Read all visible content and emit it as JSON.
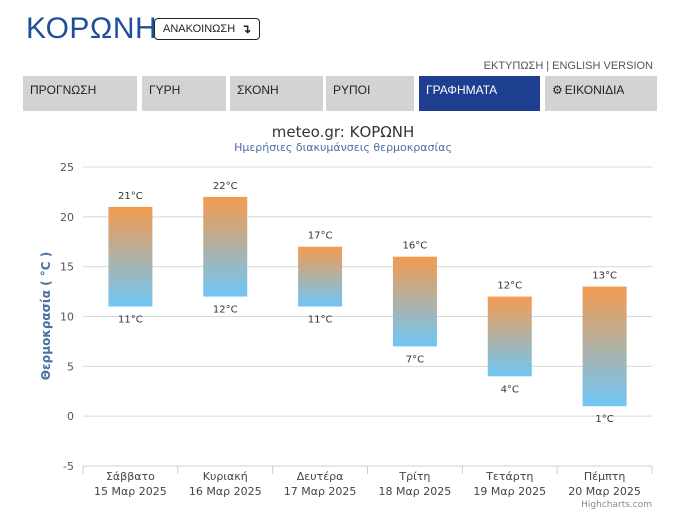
{
  "header": {
    "title": "ΚΟΡΩΝΗ",
    "announce_label": "ΑΝΑΚΟΙΝΩΣΗ",
    "announce_icon": "arrow-turn-down-icon",
    "print_link": "ΕΚΤΥΠΩΣΗ",
    "link_separator": "|",
    "english_link": "ENGLISH VERSION"
  },
  "tabs": [
    {
      "label": "ΠΡΟΓΝΩΣΗ",
      "active": false
    },
    {
      "label": "ΓΥΡΗ",
      "active": false
    },
    {
      "label": "ΣΚΟΝΗ",
      "active": false
    },
    {
      "label": "ΡΥΠΟΙ",
      "active": false
    },
    {
      "label": "ΓΡΑΦΗΜΑΤΑ",
      "active": true
    },
    {
      "label": "ΕΙΚΟΝΙΔΙΑ",
      "active": false,
      "icon": "gear-icon"
    }
  ],
  "colors": {
    "accent": "#1e3f8f",
    "tab_bg": "#d3d3d3",
    "bar_top": "#f39b50",
    "bar_bottom": "#6fc6f6",
    "title": "#1f4e9a"
  },
  "chart_data": {
    "type": "bar",
    "title": "meteo.gr: ΚΟΡΩΝΗ",
    "subtitle": "Ημερήσιες διακυμάνσεις θερμοκρασίας",
    "ylabel": "Θερμοκρασία ( °C )",
    "ylim": [
      -5,
      25
    ],
    "yticks": [
      -5,
      0,
      5,
      10,
      15,
      20,
      25
    ],
    "grid": true,
    "categories": [
      [
        "Σάββατο",
        "15 Μαρ 2025"
      ],
      [
        "Κυριακή",
        "16 Μαρ 2025"
      ],
      [
        "Δευτέρα",
        "17 Μαρ 2025"
      ],
      [
        "Τρίτη",
        "18 Μαρ 2025"
      ],
      [
        "Τετάρτη",
        "19 Μαρ 2025"
      ],
      [
        "Πέμπτη",
        "20 Μαρ 2025"
      ]
    ],
    "series": [
      {
        "low": 11,
        "high": 21
      },
      {
        "low": 12,
        "high": 22
      },
      {
        "low": 11,
        "high": 17
      },
      {
        "low": 7,
        "high": 16
      },
      {
        "low": 4,
        "high": 12
      },
      {
        "low": 1,
        "high": 13
      }
    ],
    "unit": "°C",
    "credit": "Highcharts.com"
  }
}
